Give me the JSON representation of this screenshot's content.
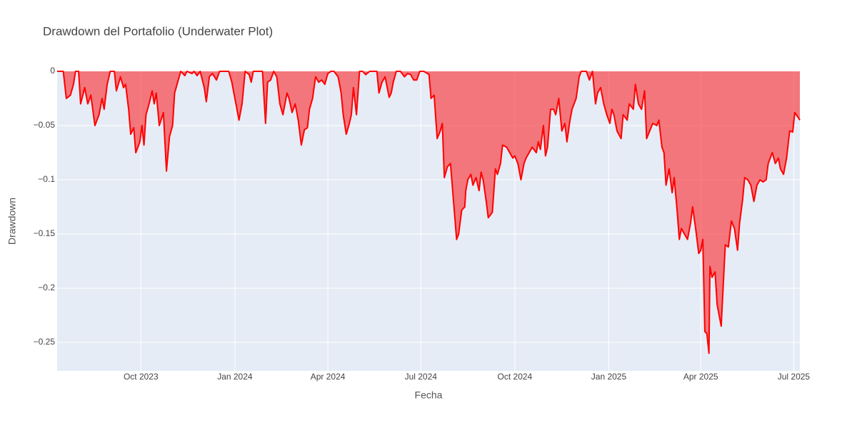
{
  "chart_data": {
    "type": "area",
    "title": "Drawdown del Portafolio (Underwater Plot)",
    "x_label": "Fecha",
    "y_label": "Drawdown",
    "color": "#ff0000",
    "fill_color": "rgba(255,0,0,0.5)",
    "grid": true,
    "xlim": [
      "2023-07-11",
      "2025-07-07"
    ],
    "ylim": [
      -0.2763,
      0
    ],
    "xticks": [
      {
        "value": "2023-10-01",
        "label": "Oct 2023"
      },
      {
        "value": "2024-01-01",
        "label": "Jan 2024"
      },
      {
        "value": "2024-04-01",
        "label": "Apr 2024"
      },
      {
        "value": "2024-07-01",
        "label": "Jul 2024"
      },
      {
        "value": "2024-10-01",
        "label": "Oct 2024"
      },
      {
        "value": "2025-01-01",
        "label": "Jan 2025"
      },
      {
        "value": "2025-04-01",
        "label": "Apr 2025"
      },
      {
        "value": "2025-07-01",
        "label": "Jul 2025"
      }
    ],
    "yticks": [
      0,
      {
        "value": -0.05,
        "label": "−0.05"
      },
      {
        "value": -0.1,
        "label": "−0.1"
      },
      {
        "value": -0.15,
        "label": "−0.15"
      },
      {
        "value": -0.2,
        "label": "−0.2"
      },
      {
        "value": -0.25,
        "label": "−0.25"
      }
    ],
    "x": [
      "2023-07-11",
      "2023-07-17",
      "2023-07-20",
      "2023-07-24",
      "2023-07-27",
      "2023-07-29",
      "2023-08-01",
      "2023-08-03",
      "2023-08-07",
      "2023-08-10",
      "2023-08-13",
      "2023-08-17",
      "2023-08-21",
      "2023-08-24",
      "2023-08-26",
      "2023-08-29",
      "2023-09-01",
      "2023-09-05",
      "2023-09-07",
      "2023-09-11",
      "2023-09-14",
      "2023-09-16",
      "2023-09-19",
      "2023-09-21",
      "2023-09-24",
      "2023-09-26",
      "2023-09-30",
      "2023-10-02",
      "2023-10-04",
      "2023-10-06",
      "2023-10-09",
      "2023-10-12",
      "2023-10-14",
      "2023-10-16",
      "2023-10-19",
      "2023-10-23",
      "2023-10-26",
      "2023-10-29",
      "2023-11-01",
      "2023-11-03",
      "2023-11-06",
      "2023-11-09",
      "2023-11-13",
      "2023-11-15",
      "2023-11-20",
      "2023-11-22",
      "2023-11-25",
      "2023-11-28",
      "2023-12-02",
      "2023-12-04",
      "2023-12-07",
      "2023-12-10",
      "2023-12-14",
      "2023-12-17",
      "2023-12-21",
      "2023-12-26",
      "2023-12-29",
      "2024-01-03",
      "2024-01-05",
      "2024-01-08",
      "2024-01-11",
      "2024-01-15",
      "2024-01-17",
      "2024-01-19",
      "2024-01-24",
      "2024-01-28",
      "2024-01-31",
      "2024-02-02",
      "2024-02-05",
      "2024-02-08",
      "2024-02-11",
      "2024-02-14",
      "2024-02-17",
      "2024-02-21",
      "2024-02-23",
      "2024-02-26",
      "2024-02-29",
      "2024-03-03",
      "2024-03-06",
      "2024-03-09",
      "2024-03-12",
      "2024-03-14",
      "2024-03-17",
      "2024-03-20",
      "2024-03-23",
      "2024-03-26",
      "2024-03-29",
      "2024-04-01",
      "2024-04-04",
      "2024-04-07",
      "2024-04-11",
      "2024-04-14",
      "2024-04-16",
      "2024-04-19",
      "2024-04-22",
      "2024-04-24",
      "2024-04-26",
      "2024-04-29",
      "2024-05-02",
      "2024-05-05",
      "2024-05-08",
      "2024-05-12",
      "2024-05-15",
      "2024-05-19",
      "2024-05-21",
      "2024-05-24",
      "2024-05-27",
      "2024-05-31",
      "2024-06-02",
      "2024-06-04",
      "2024-06-07",
      "2024-06-11",
      "2024-06-15",
      "2024-06-18",
      "2024-06-21",
      "2024-06-24",
      "2024-06-27",
      "2024-06-30",
      "2024-07-04",
      "2024-07-09",
      "2024-07-11",
      "2024-07-14",
      "2024-07-17",
      "2024-07-20",
      "2024-07-22",
      "2024-07-24",
      "2024-07-27",
      "2024-07-30",
      "2024-08-02",
      "2024-08-05",
      "2024-08-07",
      "2024-08-10",
      "2024-08-13",
      "2024-08-14",
      "2024-08-16",
      "2024-08-19",
      "2024-08-21",
      "2024-08-24",
      "2024-08-27",
      "2024-08-29",
      "2024-08-31",
      "2024-09-03",
      "2024-09-05",
      "2024-09-09",
      "2024-09-12",
      "2024-09-14",
      "2024-09-17",
      "2024-09-19",
      "2024-09-23",
      "2024-09-26",
      "2024-09-29",
      "2024-10-01",
      "2024-10-04",
      "2024-10-07",
      "2024-10-10",
      "2024-10-12",
      "2024-10-15",
      "2024-10-18",
      "2024-10-22",
      "2024-10-24",
      "2024-10-26",
      "2024-10-29",
      "2024-10-31",
      "2024-11-02",
      "2024-11-05",
      "2024-11-08",
      "2024-11-10",
      "2024-11-13",
      "2024-11-16",
      "2024-11-19",
      "2024-11-21",
      "2024-11-24",
      "2024-11-26",
      "2024-11-30",
      "2024-12-03",
      "2024-12-05",
      "2024-12-10",
      "2024-12-13",
      "2024-12-16",
      "2024-12-19",
      "2024-12-21",
      "2024-12-24",
      "2024-12-27",
      "2024-12-30",
      "2025-01-02",
      "2025-01-04",
      "2025-01-06",
      "2025-01-09",
      "2025-01-13",
      "2025-01-15",
      "2025-01-19",
      "2025-01-21",
      "2025-01-25",
      "2025-01-27",
      "2025-01-30",
      "2025-02-02",
      "2025-02-05",
      "2025-02-07",
      "2025-02-10",
      "2025-02-13",
      "2025-02-17",
      "2025-02-19",
      "2025-02-22",
      "2025-02-24",
      "2025-02-26",
      "2025-03-01",
      "2025-03-04",
      "2025-03-06",
      "2025-03-09",
      "2025-03-11",
      "2025-03-13",
      "2025-03-16",
      "2025-03-19",
      "2025-03-22",
      "2025-03-24",
      "2025-03-27",
      "2025-03-30",
      "2025-04-01",
      "2025-04-03",
      "2025-04-05",
      "2025-04-07",
      "2025-04-09",
      "2025-04-10",
      "2025-04-12",
      "2025-04-15",
      "2025-04-17",
      "2025-04-21",
      "2025-04-25",
      "2025-04-28",
      "2025-05-01",
      "2025-05-04",
      "2025-05-07",
      "2025-05-09",
      "2025-05-12",
      "2025-05-14",
      "2025-05-17",
      "2025-05-20",
      "2025-05-23",
      "2025-05-26",
      "2025-05-29",
      "2025-06-01",
      "2025-06-04",
      "2025-06-06",
      "2025-06-10",
      "2025-06-13",
      "2025-06-16",
      "2025-06-18",
      "2025-06-21",
      "2025-06-24",
      "2025-06-27",
      "2025-06-30",
      "2025-07-02",
      "2025-07-05",
      "2025-07-07"
    ],
    "values": [
      0,
      0,
      -0.025,
      -0.022,
      -0.012,
      0,
      0,
      -0.03,
      -0.015,
      -0.03,
      -0.022,
      -0.05,
      -0.04,
      -0.025,
      -0.035,
      -0.012,
      0,
      0,
      -0.018,
      -0.005,
      -0.015,
      -0.012,
      -0.035,
      -0.058,
      -0.052,
      -0.075,
      -0.065,
      -0.05,
      -0.068,
      -0.04,
      -0.03,
      -0.018,
      -0.03,
      -0.02,
      -0.05,
      -0.038,
      -0.092,
      -0.06,
      -0.05,
      -0.02,
      -0.01,
      0,
      -0.004,
      0,
      -0.002,
      0,
      -0.004,
      0,
      -0.015,
      -0.028,
      -0.005,
      -0.002,
      -0.008,
      0,
      0,
      0,
      -0.01,
      -0.035,
      -0.045,
      -0.03,
      0,
      -0.003,
      -0.01,
      0,
      0,
      0,
      -0.048,
      -0.01,
      -0.008,
      0,
      -0.005,
      -0.03,
      -0.04,
      -0.02,
      -0.025,
      -0.038,
      -0.03,
      -0.045,
      -0.068,
      -0.054,
      -0.052,
      -0.035,
      -0.025,
      -0.005,
      -0.01,
      -0.008,
      -0.012,
      -0.002,
      0,
      0,
      -0.005,
      -0.02,
      -0.04,
      -0.058,
      -0.048,
      -0.04,
      -0.015,
      -0.04,
      0,
      0,
      -0.003,
      0,
      0,
      0,
      -0.02,
      -0.01,
      -0.005,
      -0.024,
      -0.02,
      -0.01,
      0,
      0,
      -0.005,
      -0.002,
      -0.003,
      -0.008,
      -0.008,
      0,
      0,
      -0.003,
      -0.025,
      -0.022,
      -0.062,
      -0.055,
      -0.048,
      -0.098,
      -0.088,
      -0.085,
      -0.12,
      -0.155,
      -0.15,
      -0.128,
      -0.125,
      -0.11,
      -0.1,
      -0.095,
      -0.105,
      -0.098,
      -0.11,
      -0.093,
      -0.1,
      -0.12,
      -0.135,
      -0.13,
      -0.09,
      -0.095,
      -0.085,
      -0.068,
      -0.07,
      -0.075,
      -0.08,
      -0.078,
      -0.085,
      -0.1,
      -0.085,
      -0.08,
      -0.075,
      -0.07,
      -0.075,
      -0.065,
      -0.072,
      -0.05,
      -0.078,
      -0.07,
      -0.035,
      -0.035,
      -0.04,
      -0.025,
      -0.055,
      -0.048,
      -0.065,
      -0.045,
      -0.035,
      -0.025,
      -0.005,
      0,
      0,
      -0.008,
      0,
      -0.03,
      -0.02,
      -0.015,
      -0.03,
      -0.04,
      -0.048,
      -0.035,
      -0.04,
      -0.055,
      -0.062,
      -0.04,
      -0.045,
      -0.03,
      -0.035,
      -0.012,
      -0.03,
      -0.035,
      -0.018,
      -0.062,
      -0.055,
      -0.048,
      -0.05,
      -0.045,
      -0.07,
      -0.075,
      -0.105,
      -0.09,
      -0.112,
      -0.098,
      -0.13,
      -0.155,
      -0.145,
      -0.15,
      -0.155,
      -0.14,
      -0.125,
      -0.145,
      -0.168,
      -0.165,
      -0.155,
      -0.24,
      -0.242,
      -0.26,
      -0.18,
      -0.19,
      -0.185,
      -0.215,
      -0.235,
      -0.16,
      -0.162,
      -0.138,
      -0.145,
      -0.165,
      -0.14,
      -0.118,
      -0.098,
      -0.1,
      -0.105,
      -0.12,
      -0.105,
      -0.1,
      -0.102,
      -0.1,
      -0.085,
      -0.075,
      -0.085,
      -0.08,
      -0.09,
      -0.095,
      -0.08,
      -0.055,
      -0.056,
      -0.038,
      -0.042,
      -0.045
    ]
  }
}
